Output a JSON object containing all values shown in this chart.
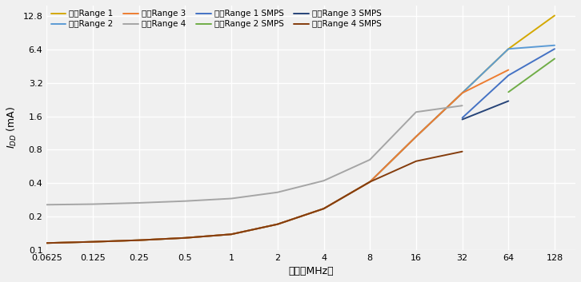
{
  "xlabel": "频率（MHz）",
  "ylabel": "I$_{DD}$ (mA)",
  "background_color": "#f0f0f0",
  "grid_color": "#ffffff",
  "x_ticks": [
    0.0625,
    0.125,
    0.25,
    0.5,
    1,
    2,
    4,
    8,
    16,
    32,
    64,
    128
  ],
  "x_tick_labels": [
    "0.0625",
    "0.125",
    "0.25",
    "0.5",
    "1",
    "2",
    "4",
    "8",
    "16",
    "32",
    "64",
    "128"
  ],
  "ylim": [
    0.1,
    16
  ],
  "y_ticks": [
    0.1,
    0.2,
    0.4,
    0.8,
    1.6,
    3.2,
    6.4,
    12.8
  ],
  "y_tick_labels": [
    "0.1",
    "0.2",
    "0.4",
    "0.8",
    "1.6",
    "3.2",
    "6.4",
    "12.8"
  ],
  "series": [
    {
      "label": "运行Range 1",
      "color": "#d4a800",
      "lw": 1.4,
      "x": [
        0.0625,
        0.125,
        0.25,
        0.5,
        1,
        2,
        4,
        8,
        16,
        32,
        64,
        128
      ],
      "y": [
        0.115,
        0.118,
        0.122,
        0.128,
        0.138,
        0.17,
        0.235,
        0.41,
        1.05,
        2.6,
        6.5,
        13.0
      ]
    },
    {
      "label": "运行Range 2",
      "color": "#5b9bd5",
      "lw": 1.4,
      "x": [
        0.0625,
        0.125,
        0.25,
        0.5,
        1,
        2,
        4,
        8,
        16,
        32,
        64,
        128
      ],
      "y": [
        0.115,
        0.118,
        0.122,
        0.128,
        0.138,
        0.17,
        0.235,
        0.41,
        1.05,
        2.6,
        6.5,
        7.0
      ]
    },
    {
      "label": "运行Range 3",
      "color": "#ed7d31",
      "lw": 1.4,
      "x": [
        0.0625,
        0.125,
        0.25,
        0.5,
        1,
        2,
        4,
        8,
        16,
        32,
        64
      ],
      "y": [
        0.115,
        0.118,
        0.122,
        0.128,
        0.138,
        0.17,
        0.235,
        0.41,
        1.05,
        2.6,
        4.2
      ]
    },
    {
      "label": "运行Range 4",
      "color": "#a5a5a5",
      "lw": 1.4,
      "x": [
        0.0625,
        0.125,
        0.25,
        0.5,
        1,
        2,
        4,
        8,
        16,
        32
      ],
      "y": [
        0.255,
        0.258,
        0.265,
        0.275,
        0.29,
        0.33,
        0.42,
        0.65,
        1.75,
        2.0
      ]
    },
    {
      "label": "运行Range 1 SMPS",
      "color": "#4472c4",
      "lw": 1.4,
      "x": [
        32,
        64,
        128
      ],
      "y": [
        1.55,
        3.75,
        6.5
      ]
    },
    {
      "label": "运行Range 2 SMPS",
      "color": "#70ad47",
      "lw": 1.4,
      "x": [
        64,
        128
      ],
      "y": [
        2.65,
        5.3
      ]
    },
    {
      "label": "运行Range 3 SMPS",
      "color": "#264478",
      "lw": 1.4,
      "x": [
        32,
        64
      ],
      "y": [
        1.5,
        2.2
      ]
    },
    {
      "label": "运行Range 4 SMPS",
      "color": "#843c0c",
      "lw": 1.4,
      "x": [
        0.0625,
        0.125,
        0.25,
        0.5,
        1,
        2,
        4,
        8,
        16,
        32
      ],
      "y": [
        0.115,
        0.118,
        0.122,
        0.128,
        0.138,
        0.17,
        0.235,
        0.41,
        0.63,
        0.77
      ]
    }
  ]
}
